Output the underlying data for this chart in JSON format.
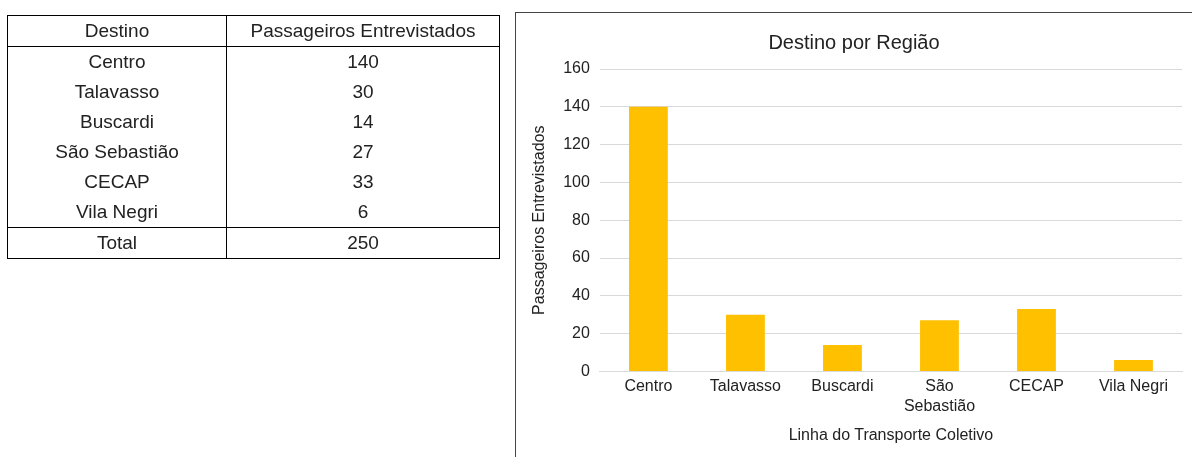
{
  "chart_data": [
    {
      "type": "other",
      "categories": [
        "Centro",
        "Talavasso",
        "Buscardi",
        "São Sebastião",
        "CECAP",
        "Vila Negri"
      ],
      "values": [
        140,
        30,
        14,
        27,
        33,
        6
      ],
      "data_labels": true,
      "annotations": [
        "Destino",
        "Passageiros Entrevistados",
        "Total",
        "250"
      ]
    },
    {
      "type": "bar",
      "title": "Destino por Região",
      "xlabel": "Linha do Transporte Coletivo",
      "ylabel": "Passageiros Entrevistados",
      "categories": [
        "Centro",
        "Talavasso",
        "Buscardi",
        "São Sebastião",
        "CECAP",
        "Vila Negri"
      ],
      "values": [
        140,
        30,
        14,
        27,
        33,
        6
      ],
      "color": "#ffc000",
      "ylim": [
        0,
        160
      ],
      "yticks": [
        0,
        20,
        40,
        60,
        80,
        100,
        120,
        140,
        160
      ],
      "grid": "y"
    }
  ]
}
